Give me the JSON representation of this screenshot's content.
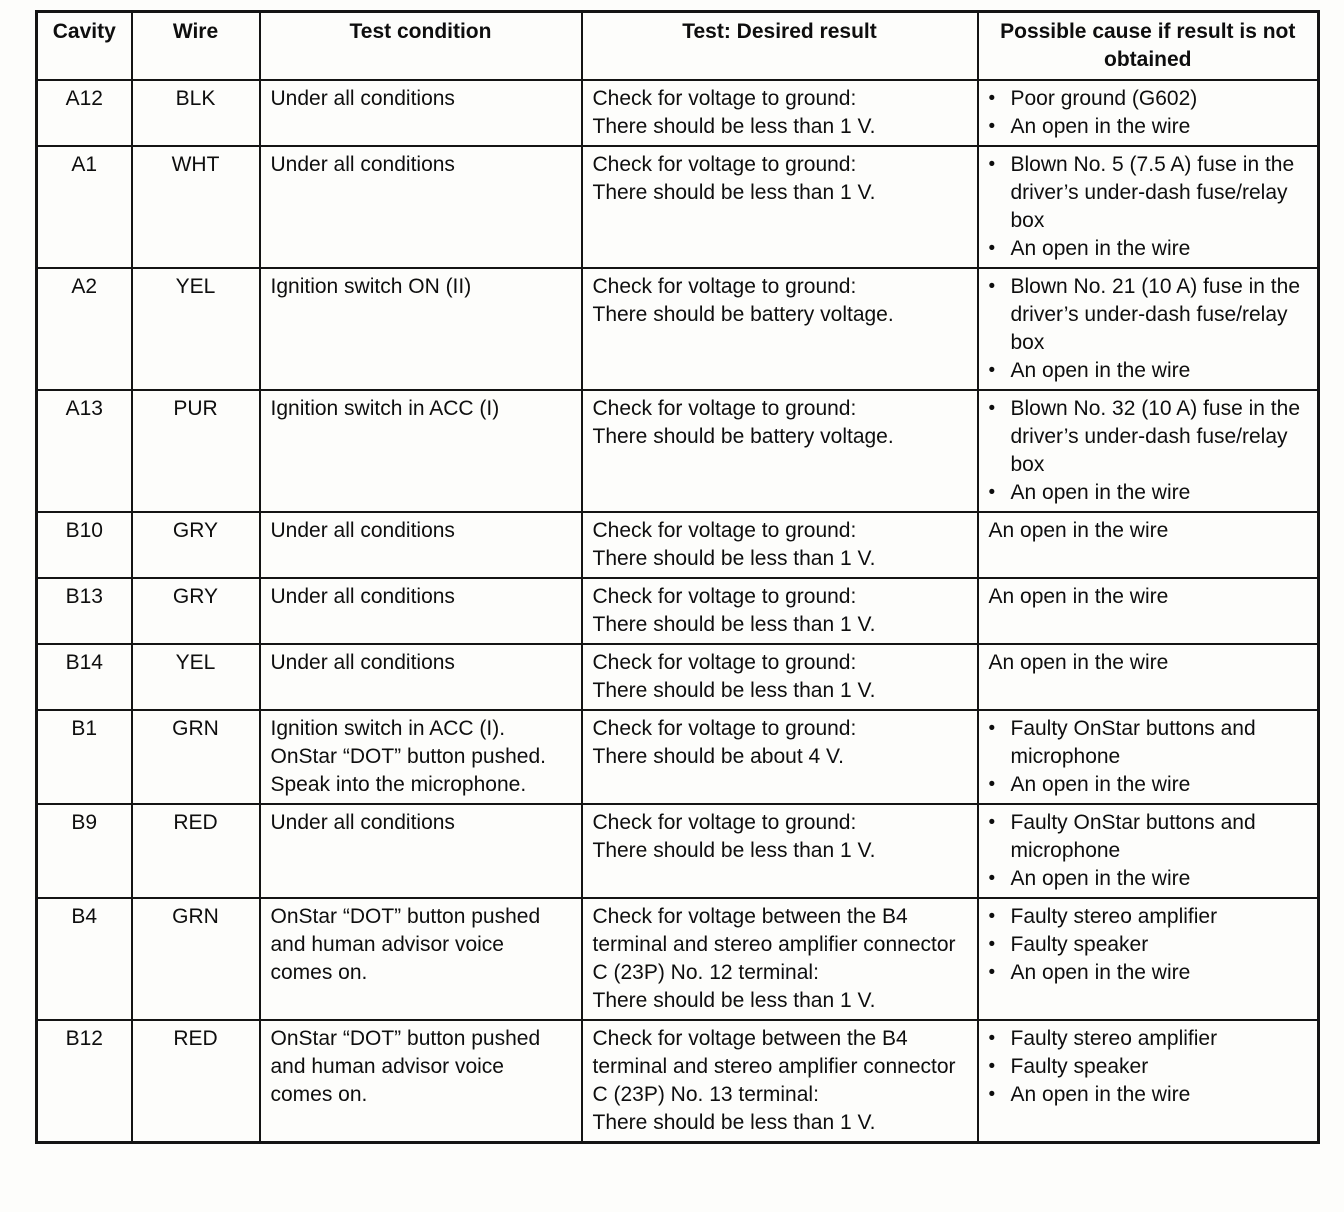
{
  "bullet_char": "•",
  "table": {
    "headers": [
      "Cavity",
      "Wire",
      "Test condition",
      "Test: Desired result",
      "Possible cause if result is not obtained"
    ],
    "rows": [
      {
        "cavity": "A12",
        "wire": "BLK",
        "test_condition": "Under all conditions",
        "desired_result": [
          "Check for voltage to ground:",
          "There should be less than 1 V."
        ],
        "possible_causes": [
          "Poor ground (G602)",
          "An open in the wire"
        ]
      },
      {
        "cavity": "A1",
        "wire": "WHT",
        "test_condition": "Under all conditions",
        "desired_result": [
          "Check for voltage to ground:",
          "There should be less than 1 V."
        ],
        "possible_causes": [
          "Blown No. 5 (7.5 A) fuse in the driver’s under-dash fuse/relay box",
          "An open in the wire"
        ]
      },
      {
        "cavity": "A2",
        "wire": "YEL",
        "test_condition": "Ignition switch ON (II)",
        "desired_result": [
          "Check for voltage to ground:",
          "There should be battery voltage."
        ],
        "possible_causes": [
          "Blown No. 21 (10 A) fuse in the driver’s under-dash fuse/relay box",
          "An open in the wire"
        ]
      },
      {
        "cavity": "A13",
        "wire": "PUR",
        "test_condition": "Ignition switch in ACC (I)",
        "desired_result": [
          "Check for voltage to ground:",
          "There should be battery voltage."
        ],
        "possible_causes": [
          "Blown No. 32 (10 A) fuse in the driver’s under-dash fuse/relay box",
          "An open in the wire"
        ]
      },
      {
        "cavity": "B10",
        "wire": "GRY",
        "test_condition": "Under all conditions",
        "desired_result": [
          "Check for voltage to ground:",
          "There should be less than 1 V."
        ],
        "possible_causes": [
          "An open in the wire"
        ]
      },
      {
        "cavity": "B13",
        "wire": "GRY",
        "test_condition": "Under all conditions",
        "desired_result": [
          "Check for voltage to ground:",
          "There should be less than 1 V."
        ],
        "possible_causes": [
          "An open in the wire"
        ]
      },
      {
        "cavity": "B14",
        "wire": "YEL",
        "test_condition": "Under all conditions",
        "desired_result": [
          "Check for voltage to ground:",
          "There should be less than 1 V."
        ],
        "possible_causes": [
          "An open in the wire"
        ]
      },
      {
        "cavity": "B1",
        "wire": "GRN",
        "test_condition": "Ignition switch in ACC (I). OnStar “DOT” button pushed. Speak into the microphone.",
        "desired_result": [
          "Check for voltage to ground:",
          "There should be about 4 V."
        ],
        "possible_causes": [
          "Faulty OnStar buttons and microphone",
          "An open in the wire"
        ]
      },
      {
        "cavity": "B9",
        "wire": "RED",
        "test_condition": "Under all conditions",
        "desired_result": [
          "Check for voltage to ground:",
          "There should be less than 1 V."
        ],
        "possible_causes": [
          "Faulty OnStar buttons and microphone",
          "An open in the wire"
        ]
      },
      {
        "cavity": "B4",
        "wire": "GRN",
        "test_condition": "OnStar “DOT” button pushed and human advisor voice comes on.",
        "desired_result": [
          "Check for voltage between the B4 terminal and stereo amplifier connector C (23P) No. 12 terminal:",
          "There should be less than 1 V."
        ],
        "possible_causes": [
          "Faulty stereo amplifier",
          "Faulty speaker",
          "An open in the wire"
        ]
      },
      {
        "cavity": "B12",
        "wire": "RED",
        "test_condition": "OnStar “DOT” button pushed and human advisor voice comes on.",
        "desired_result": [
          "Check for voltage between the B4 terminal and stereo amplifier connector C (23P) No. 13 terminal:",
          "There should be less than 1 V."
        ],
        "possible_causes": [
          "Faulty stereo amplifier",
          "Faulty speaker",
          "An open in the wire"
        ]
      }
    ]
  }
}
